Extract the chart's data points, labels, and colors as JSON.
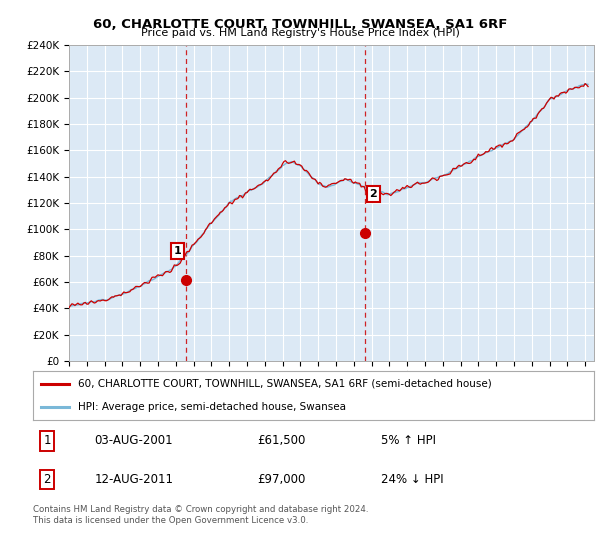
{
  "title": "60, CHARLOTTE COURT, TOWNHILL, SWANSEA, SA1 6RF",
  "subtitle": "Price paid vs. HM Land Registry's House Price Index (HPI)",
  "ylabel_ticks": [
    "£0",
    "£20K",
    "£40K",
    "£60K",
    "£80K",
    "£100K",
    "£120K",
    "£140K",
    "£160K",
    "£180K",
    "£200K",
    "£220K",
    "£240K"
  ],
  "ytick_values": [
    0,
    20000,
    40000,
    60000,
    80000,
    100000,
    120000,
    140000,
    160000,
    180000,
    200000,
    220000,
    240000
  ],
  "ylim": [
    0,
    240000
  ],
  "xlim_start": 1995.0,
  "xlim_end": 2024.5,
  "hpi_color": "#7ab8d8",
  "price_color": "#cc0000",
  "vline_color": "#cc0000",
  "bg_color": "#dce9f5",
  "grid_color": "#ffffff",
  "sale1_year": 2001.58,
  "sale1_price": 61500,
  "sale1_label": "1",
  "sale2_year": 2011.61,
  "sale2_price": 97000,
  "sale2_label": "2",
  "legend_line1": "60, CHARLOTTE COURT, TOWNHILL, SWANSEA, SA1 6RF (semi-detached house)",
  "legend_line2": "HPI: Average price, semi-detached house, Swansea",
  "footer": "Contains HM Land Registry data © Crown copyright and database right 2024.\nThis data is licensed under the Open Government Licence v3.0.",
  "xtick_years": [
    1995,
    1996,
    1997,
    1998,
    1999,
    2000,
    2001,
    2002,
    2003,
    2004,
    2005,
    2006,
    2007,
    2008,
    2009,
    2010,
    2011,
    2012,
    2013,
    2014,
    2015,
    2016,
    2017,
    2018,
    2019,
    2020,
    2021,
    2022,
    2023,
    2024
  ],
  "hpi_keypoints": [
    [
      1995.0,
      42000
    ],
    [
      1996.0,
      44000
    ],
    [
      1997.0,
      47000
    ],
    [
      1998.0,
      51000
    ],
    [
      1999.0,
      57000
    ],
    [
      2000.0,
      64000
    ],
    [
      2001.0,
      72000
    ],
    [
      2002.0,
      88000
    ],
    [
      2003.0,
      105000
    ],
    [
      2004.0,
      120000
    ],
    [
      2005.0,
      128000
    ],
    [
      2006.0,
      136000
    ],
    [
      2007.0,
      148000
    ],
    [
      2007.5,
      152000
    ],
    [
      2008.0,
      148000
    ],
    [
      2008.5,
      142000
    ],
    [
      2009.0,
      135000
    ],
    [
      2009.5,
      132000
    ],
    [
      2010.0,
      135000
    ],
    [
      2010.5,
      138000
    ],
    [
      2011.0,
      136000
    ],
    [
      2011.5,
      133000
    ],
    [
      2012.0,
      130000
    ],
    [
      2012.5,
      128000
    ],
    [
      2013.0,
      127000
    ],
    [
      2013.5,
      129000
    ],
    [
      2014.0,
      132000
    ],
    [
      2015.0,
      136000
    ],
    [
      2016.0,
      141000
    ],
    [
      2017.0,
      148000
    ],
    [
      2018.0,
      155000
    ],
    [
      2019.0,
      162000
    ],
    [
      2020.0,
      168000
    ],
    [
      2021.0,
      182000
    ],
    [
      2022.0,
      198000
    ],
    [
      2023.0,
      205000
    ],
    [
      2024.0,
      210000
    ]
  ]
}
